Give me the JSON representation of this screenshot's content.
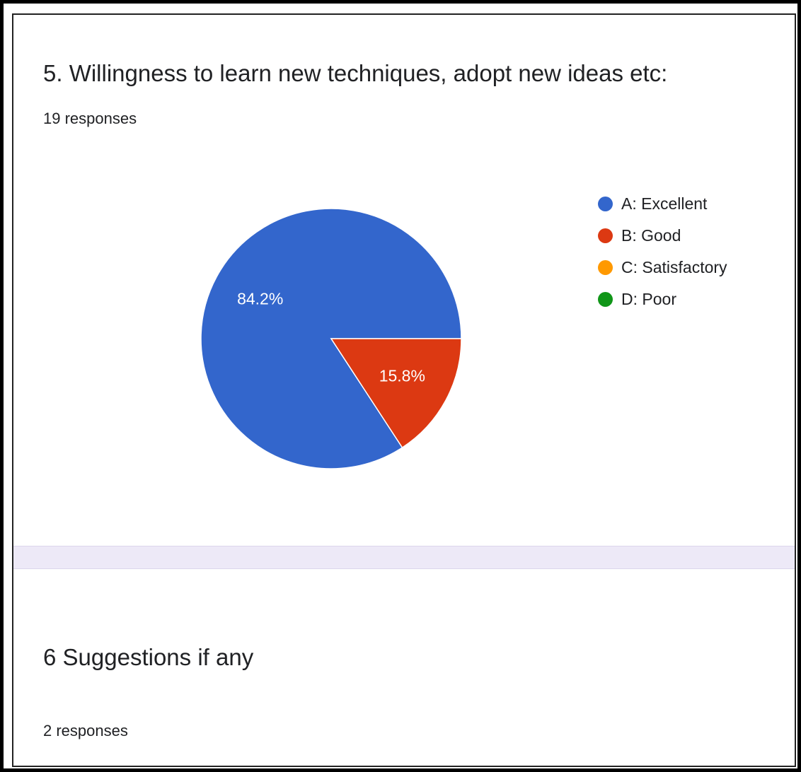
{
  "question5": {
    "title": "5. Willingness to learn new techniques, adopt new ideas etc:",
    "responses": "19 responses"
  },
  "question6": {
    "title": "6 Suggestions if any",
    "responses": "2 responses"
  },
  "chart_data": {
    "type": "pie",
    "title": "",
    "categories": [
      "A: Excellent",
      "B: Good",
      "C: Satisfactory",
      "D: Poor"
    ],
    "values": [
      84.2,
      15.8,
      0,
      0
    ],
    "value_labels": [
      "84.2%",
      "15.8%",
      "",
      ""
    ],
    "colors": [
      "#3366cc",
      "#dc3912",
      "#ff9900",
      "#109618"
    ],
    "legend_position": "right"
  }
}
